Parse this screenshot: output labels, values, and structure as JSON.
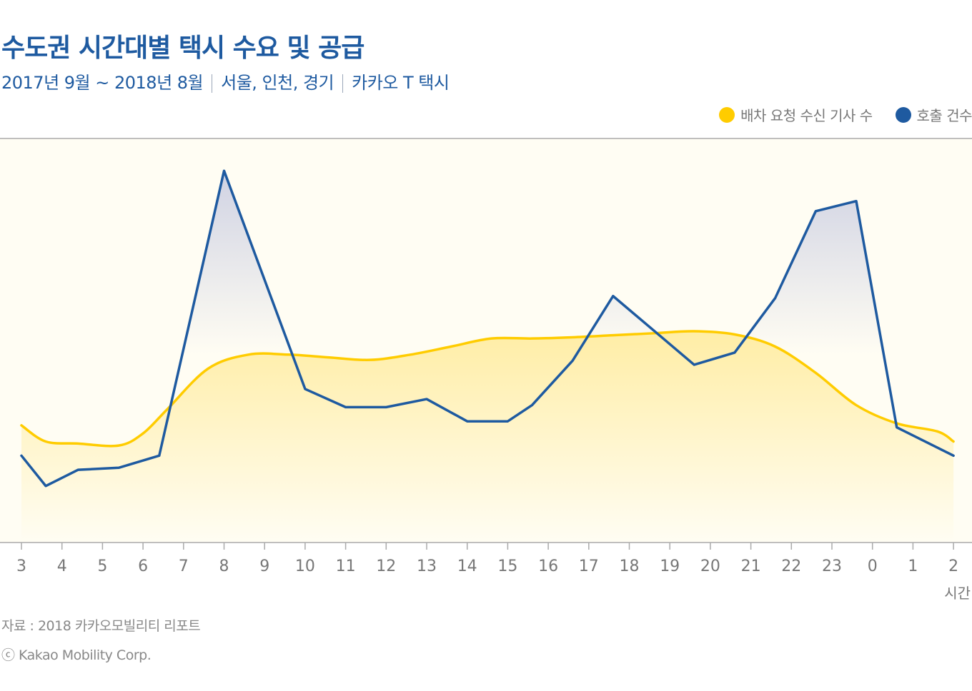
{
  "title": "수도권 시간대별 택시 수요 및 공급",
  "subtitle": {
    "period": "2017년 9월 ~ 2018년 8월",
    "region": "서울, 인천, 경기",
    "service": "카카오 T 택시"
  },
  "colors": {
    "supply": "#ffcc00",
    "demand": "#1e5aa0",
    "background": "#fffdf3",
    "axis": "#aaaaaa"
  },
  "chart_data": {
    "type": "line",
    "x_unit": "시간",
    "categories": [
      "3",
      "4",
      "5",
      "6",
      "7",
      "8",
      "9",
      "10",
      "11",
      "12",
      "13",
      "14",
      "15",
      "16",
      "17",
      "18",
      "19",
      "20",
      "21",
      "22",
      "23",
      "0",
      "1",
      "2"
    ],
    "ylim": [
      0,
      100
    ],
    "grid": false,
    "legend_position": "top-right",
    "series": [
      {
        "name": "배차 요청 수신 기사 수",
        "key": "supply",
        "x": [
          0,
          0.6,
          1.4,
          2.4,
          3.0,
          3.6,
          4.6,
          5.6,
          6.6,
          7.6,
          8.6,
          9.6,
          10.6,
          11.6,
          12.6,
          13.6,
          14.6,
          15.6,
          16.6,
          17.6,
          18.6,
          19.6,
          20.6,
          21.6,
          22.6,
          23.0
        ],
        "values": [
          29,
          25,
          24.5,
          24,
          27,
          33,
          43,
          46.5,
          46.5,
          45.8,
          45.2,
          46.5,
          48.5,
          50.5,
          50.5,
          50.8,
          51.3,
          51.8,
          52.3,
          51.5,
          48.5,
          42,
          34,
          29.5,
          27.5,
          25
        ]
      },
      {
        "name": "호출 건수",
        "key": "demand",
        "x": [
          0,
          0.6,
          1.4,
          2.4,
          3.4,
          5.0,
          7.0,
          8.0,
          9.0,
          10.0,
          11.0,
          12.0,
          12.6,
          13.6,
          14.6,
          15.6,
          16.6,
          17.6,
          18.6,
          19.6,
          20.6,
          21.6,
          23.0
        ],
        "values": [
          21.5,
          14,
          18,
          18.5,
          21.5,
          92,
          38,
          33.5,
          33.5,
          35.5,
          30,
          30,
          34,
          45,
          61,
          52.5,
          44,
          47,
          60.5,
          82,
          84.5,
          28.5,
          21.5
        ]
      }
    ]
  },
  "source": "자료 : 2018 카카오모빌리티 리포트",
  "copyright": "ⓒ Kakao Mobility Corp."
}
